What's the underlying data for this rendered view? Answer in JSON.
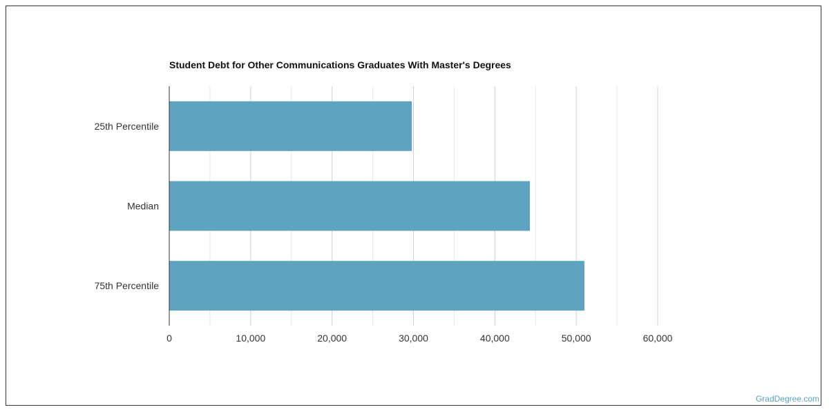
{
  "chart_data": {
    "type": "bar",
    "orientation": "horizontal",
    "title": "Student Debt for Other Communications Graduates With Master's Degrees",
    "categories": [
      "25th Percentile",
      "Median",
      "75th Percentile"
    ],
    "values": [
      29800,
      44300,
      51000
    ],
    "xlim": [
      0,
      60000
    ],
    "xticks": [
      "0",
      "10,000",
      "20,000",
      "30,000",
      "40,000",
      "50,000",
      "60,000"
    ],
    "grid": true,
    "bar_color": "#5ea3c0"
  },
  "source": "GradDegree.com"
}
